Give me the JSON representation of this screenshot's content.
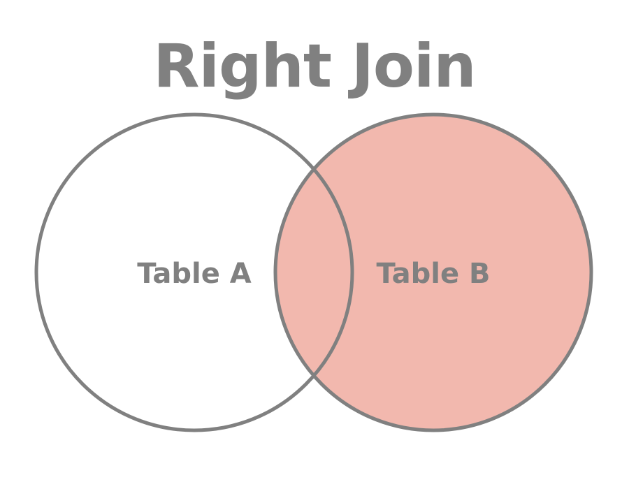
{
  "title": "Right Join",
  "colors": {
    "outline": "#808080",
    "highlight": "#f2b8ae",
    "text": "#808080",
    "background": "#ffffff"
  },
  "sets": {
    "left": {
      "label": "Table A",
      "highlighted": false
    },
    "right": {
      "label": "Table B",
      "highlighted": true
    }
  }
}
